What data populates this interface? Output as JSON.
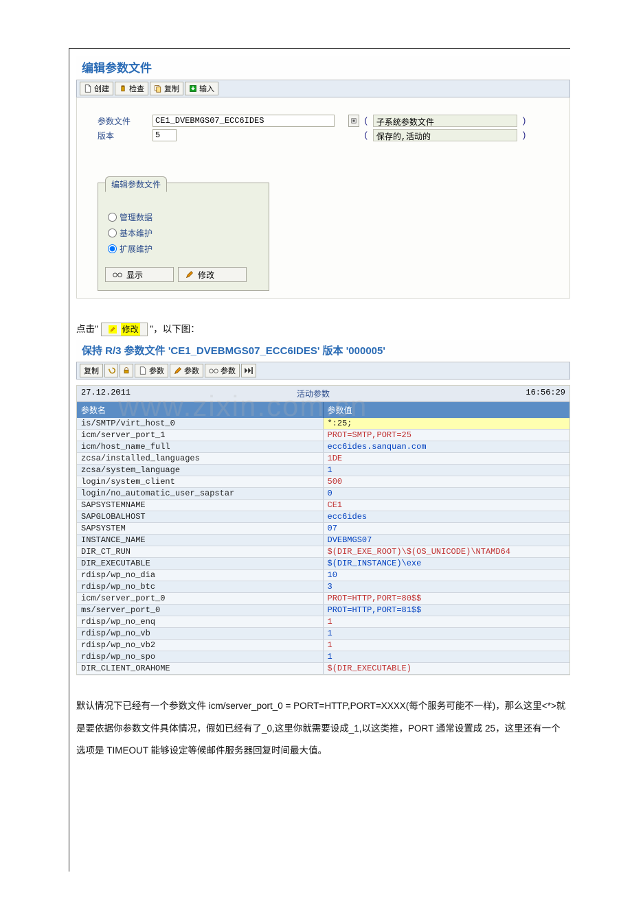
{
  "screen1": {
    "title": "编辑参数文件",
    "toolbar": {
      "create": "创建",
      "check": "检查",
      "copy": "复制",
      "import": "输入"
    },
    "fields": {
      "file_label": "参数文件",
      "file_value": "CE1_DVEBMGS07_ECC6IDES",
      "version_label": "版本",
      "version_value": "5",
      "type_value": "子系统参数文件",
      "status_value": "保存的,活动的"
    },
    "group": {
      "title": "编辑参数文件",
      "opt_admin": "管理数据",
      "opt_basic": "基本维护",
      "opt_ext": "扩展维护",
      "btn_display": "显示",
      "btn_modify": "修改"
    }
  },
  "midtext": {
    "prefix": "点击\"",
    "btn": "修改",
    "suffix": "\"，以下图："
  },
  "screen2": {
    "title": "保持 R/3 参数文件 'CE1_DVEBMGS07_ECC6IDES' 版本 '000005'",
    "toolbar": {
      "copy": "复制",
      "param1": "参数",
      "param2": "参数",
      "param3": "参数"
    },
    "top": {
      "date": "27.12.2011",
      "center": "活动参数",
      "time": "16:56:29"
    },
    "head": {
      "name": "参数名",
      "value": "参数值"
    },
    "rows": [
      {
        "n": "is/SMTP/virt_host_0",
        "v": "*:25;",
        "c": "v-dark",
        "sel": true
      },
      {
        "n": "icm/server_port_1",
        "v": "PROT=SMTP,PORT=25",
        "c": "v-red"
      },
      {
        "n": "icm/host_name_full",
        "v": "ecc6ides.sanquan.com",
        "c": "v-blue"
      },
      {
        "n": "zcsa/installed_languages",
        "v": "1DE",
        "c": "v-red"
      },
      {
        "n": "zcsa/system_language",
        "v": "1",
        "c": "v-blue"
      },
      {
        "n": "login/system_client",
        "v": "500",
        "c": "v-red"
      },
      {
        "n": "login/no_automatic_user_sapstar",
        "v": "0",
        "c": "v-blue"
      },
      {
        "n": "SAPSYSTEMNAME",
        "v": "CE1",
        "c": "v-red"
      },
      {
        "n": "SAPGLOBALHOST",
        "v": "ecc6ides",
        "c": "v-blue"
      },
      {
        "n": "SAPSYSTEM",
        "v": "07",
        "c": "v-blue"
      },
      {
        "n": "INSTANCE_NAME",
        "v": "DVEBMGS07",
        "c": "v-blue"
      },
      {
        "n": "DIR_CT_RUN",
        "v": "$(DIR_EXE_ROOT)\\$(OS_UNICODE)\\NTAMD64",
        "c": "v-red"
      },
      {
        "n": "DIR_EXECUTABLE",
        "v": "$(DIR_INSTANCE)\\exe",
        "c": "v-blue"
      },
      {
        "n": "rdisp/wp_no_dia",
        "v": "10",
        "c": "v-blue"
      },
      {
        "n": "rdisp/wp_no_btc",
        "v": "3",
        "c": "v-blue"
      },
      {
        "n": "icm/server_port_0",
        "v": "PROT=HTTP,PORT=80$$",
        "c": "v-red"
      },
      {
        "n": "ms/server_port_0",
        "v": "PROT=HTTP,PORT=81$$",
        "c": "v-blue"
      },
      {
        "n": "rdisp/wp_no_enq",
        "v": "1",
        "c": "v-red"
      },
      {
        "n": "rdisp/wp_no_vb",
        "v": "1",
        "c": "v-blue"
      },
      {
        "n": "rdisp/wp_no_vb2",
        "v": "1",
        "c": "v-red"
      },
      {
        "n": "rdisp/wp_no_spo",
        "v": "1",
        "c": "v-blue"
      },
      {
        "n": "DIR_CLIENT_ORAHOME",
        "v": "$(DIR_EXECUTABLE)",
        "c": "v-red"
      }
    ]
  },
  "footer": "默认情况下已经有一个参数文件 icm/server_port_0 = PORT=HTTP,PORT=XXXX(每个服务可能不一样)，那么这里<*>就是要依据你参数文件具体情况，假如已经有了_0,这里你就需要设成_1,以这类推，PORT 通常设置成 25，这里还有一个选项是 TIMEOUT 能够设定等候邮件服务器回复时间最大值。",
  "watermark": "www.zixin.com.cn",
  "colors": {
    "title": "#2a6bb5",
    "toolbar_bg": "#e5ecf4",
    "head_bg": "#5b8dc5"
  }
}
